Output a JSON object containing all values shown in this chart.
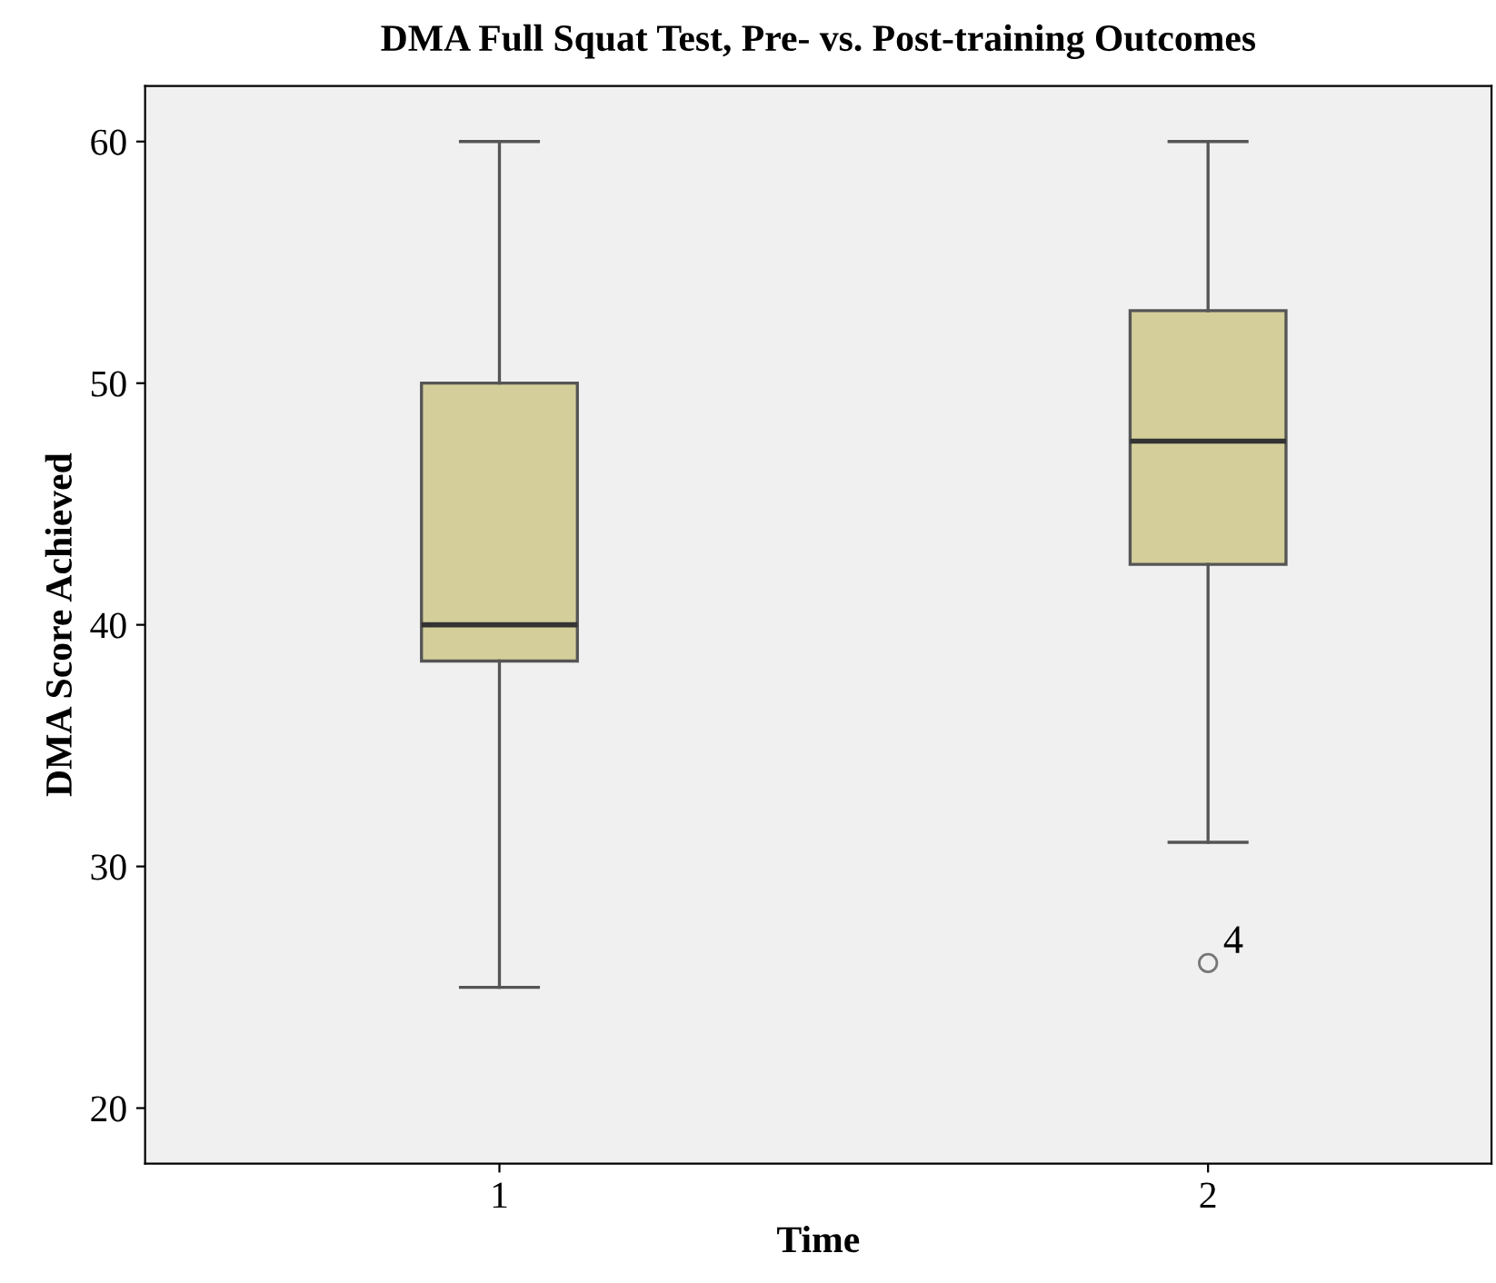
{
  "chart_data": {
    "type": "box",
    "title": "DMA Full Squat Test, Pre- vs. Post-training Outcomes",
    "xlabel": "Time",
    "ylabel": "DMA Score Achieved",
    "categories": [
      "1",
      "2"
    ],
    "boxes": [
      {
        "low": 25,
        "q1": 38.5,
        "median": 40,
        "q3": 50,
        "high": 60
      },
      {
        "low": 31,
        "q1": 42.5,
        "median": 47.6,
        "q3": 53,
        "high": 60,
        "outliers": [
          26
        ]
      }
    ],
    "color": "#d4cf9a",
    "annotations": [
      "4"
    ],
    "ylim": [
      17.7,
      62.3
    ],
    "yticks": [
      20,
      30,
      40,
      50,
      60
    ],
    "grid": false,
    "legend": false
  }
}
